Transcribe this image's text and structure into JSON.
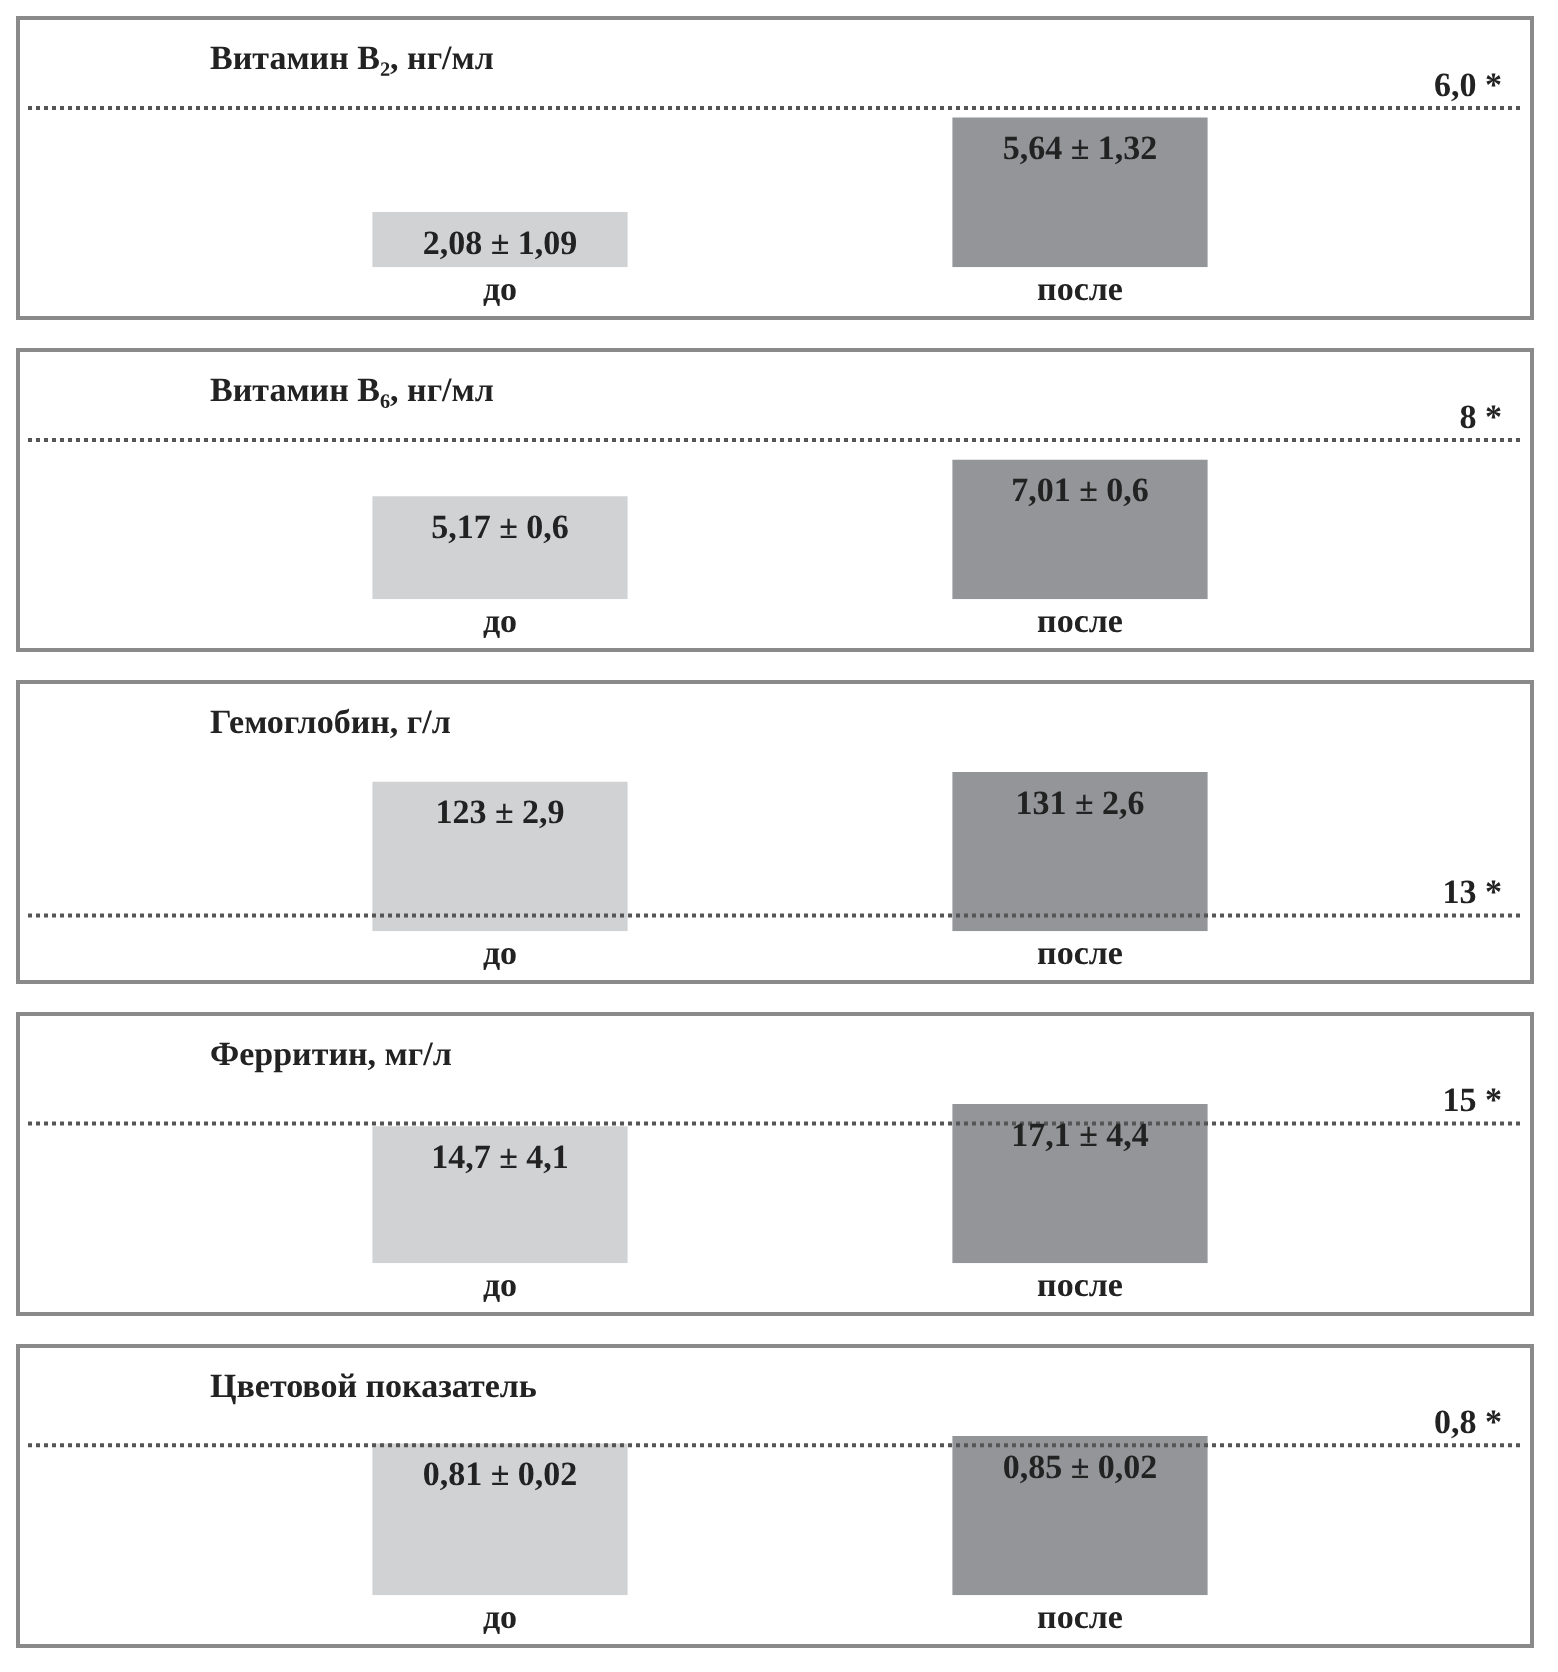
{
  "chart_data": [
    {
      "type": "bar",
      "title": "Витамин B₂, нг/мл",
      "categories": [
        "до",
        "после"
      ],
      "values": [
        2.08,
        5.64
      ],
      "colors": [
        "#d1d2d4",
        "#939598"
      ],
      "value_labels": [
        "2,08 ± 1,09",
        "5,64 ± 1,32"
      ],
      "ref_lines": [
        {
          "axis": "y",
          "value": 6.0,
          "label": "6,0 *",
          "line_style": "dotted"
        }
      ],
      "grid": false,
      "legend": false,
      "tick_labels": "x"
    },
    {
      "type": "bar",
      "title": "Витамин B₆, нг/мл",
      "categories": [
        "до",
        "после"
      ],
      "values": [
        5.17,
        7.01
      ],
      "colors": [
        "#d1d2d4",
        "#939598"
      ],
      "value_labels": [
        "5,17 ± 0,6",
        "7,01 ± 0,6"
      ],
      "ref_lines": [
        {
          "axis": "y",
          "value": 8,
          "label": "8 *",
          "line_style": "dotted"
        }
      ],
      "grid": false,
      "legend": false,
      "tick_labels": "x"
    },
    {
      "type": "bar",
      "title": "Гемоглобин, г/л",
      "categories": [
        "до",
        "после"
      ],
      "values": [
        123,
        131
      ],
      "colors": [
        "#d1d2d4",
        "#939598"
      ],
      "value_labels": [
        "123 ± 2,9",
        "131 ± 2,6"
      ],
      "ref_lines": [
        {
          "axis": "y",
          "value": 13,
          "label": "13 *",
          "line_style": "dotted"
        }
      ],
      "grid": false,
      "legend": false,
      "tick_labels": "x"
    },
    {
      "type": "bar",
      "title": "Ферритин, мг/л",
      "categories": [
        "до",
        "после"
      ],
      "values": [
        14.7,
        17.1
      ],
      "colors": [
        "#d1d2d4",
        "#939598"
      ],
      "value_labels": [
        "14,7 ± 4,1",
        "17,1 ± 4,4"
      ],
      "ref_lines": [
        {
          "axis": "y",
          "value": 15,
          "label": "15 *",
          "line_style": "dotted"
        }
      ],
      "grid": false,
      "legend": false,
      "tick_labels": "x"
    },
    {
      "type": "bar",
      "title": "Цветовой показатель",
      "categories": [
        "до",
        "после"
      ],
      "values": [
        0.81,
        0.85
      ],
      "colors": [
        "#d1d2d4",
        "#939598"
      ],
      "value_labels": [
        "0,81 ± 0,02",
        "0,85 ± 0,02"
      ],
      "ref_lines": [
        {
          "axis": "y",
          "value": 0.8,
          "label": "0,8 *",
          "line_style": "dotted"
        }
      ],
      "grid": false,
      "legend": false,
      "tick_labels": "x"
    }
  ]
}
